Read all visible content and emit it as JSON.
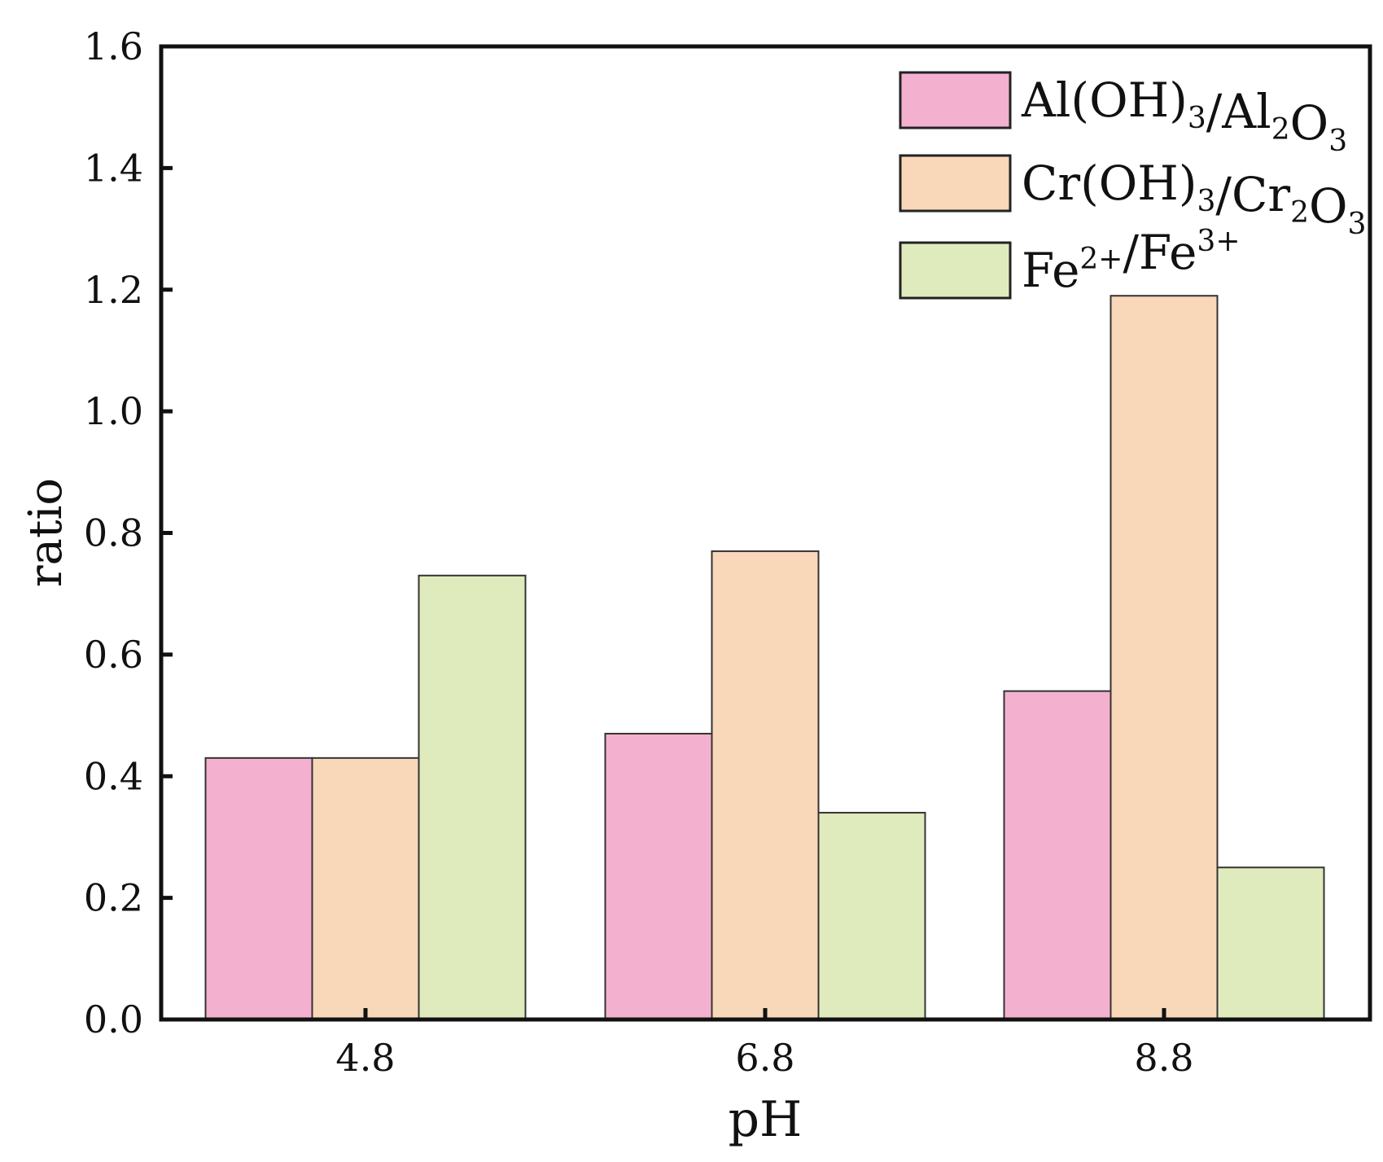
{
  "chart_data": {
    "type": "bar",
    "xlabel": "pH",
    "ylabel": "ratio",
    "categories": [
      "4.8",
      "6.8",
      "8.8"
    ],
    "ylim": [
      0.0,
      1.6
    ],
    "yticks": [
      "0.0",
      "0.2",
      "0.4",
      "0.6",
      "0.8",
      "1.0",
      "1.2",
      "1.4",
      "1.6"
    ],
    "grid": false,
    "legend_position": "top-right",
    "series": [
      {
        "name": "Al(OH)3/Al2O3",
        "legend": {
          "parts": [
            {
              "t": "Al(OH)"
            },
            {
              "t": "3",
              "s": "sub"
            },
            {
              "t": "/Al"
            },
            {
              "t": "2",
              "s": "sub"
            },
            {
              "t": "O"
            },
            {
              "t": "3",
              "s": "sub"
            }
          ]
        },
        "color": "#f4b0cf",
        "values": [
          0.43,
          0.47,
          0.54
        ]
      },
      {
        "name": "Cr(OH)3/Cr2O3",
        "legend": {
          "parts": [
            {
              "t": "Cr(OH)"
            },
            {
              "t": "3",
              "s": "sub"
            },
            {
              "t": "/Cr"
            },
            {
              "t": "2",
              "s": "sub"
            },
            {
              "t": "O"
            },
            {
              "t": "3",
              "s": "sub"
            }
          ]
        },
        "color": "#f9d7b9",
        "values": [
          0.43,
          0.77,
          1.19
        ]
      },
      {
        "name": "Fe2+/Fe3+",
        "legend": {
          "parts": [
            {
              "t": "Fe"
            },
            {
              "t": "2+",
              "s": "sup"
            },
            {
              "t": "/Fe"
            },
            {
              "t": "3+",
              "s": "sup"
            }
          ]
        },
        "color": "#e0ebbd",
        "values": [
          0.73,
          0.34,
          0.25
        ]
      }
    ]
  }
}
